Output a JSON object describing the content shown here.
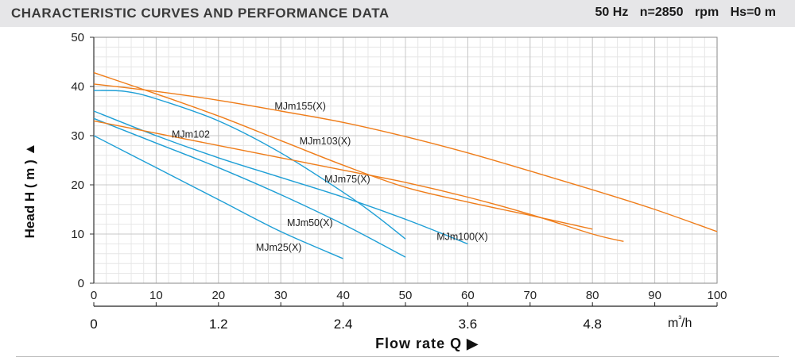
{
  "header": {
    "title": "CHARACTERISTIC CURVES AND PERFORMANCE DATA",
    "frequency": "50 Hz",
    "speed": "n=2850",
    "speed_unit": "rpm",
    "suction": "Hs=0 m"
  },
  "chart_data": {
    "type": "line",
    "ylabel": "Head H ( m ) ▲",
    "xlabel": "Flow rate Q ▶",
    "x_unit": "m³/h",
    "x_ticks_primary": [
      "0",
      "10",
      "20",
      "30",
      "40",
      "50",
      "60",
      "70",
      "80",
      "90",
      "100"
    ],
    "x_ticks_secondary": [
      "0",
      "1.2",
      "2.4",
      "3.6",
      "4.8"
    ],
    "y_ticks": [
      "0",
      "10",
      "20",
      "30",
      "40",
      "50"
    ],
    "xlim": [
      0,
      100
    ],
    "ylim": [
      0,
      50
    ],
    "grid": true,
    "colors": {
      "blue": "#1e9fd6",
      "orange": "#ef7d1a"
    },
    "series": [
      {
        "name": "MJm25(X)",
        "color": "#1e9fd6",
        "points": [
          [
            0,
            30
          ],
          [
            10,
            23.5
          ],
          [
            20,
            17
          ],
          [
            30,
            10.5
          ],
          [
            40,
            5
          ]
        ]
      },
      {
        "name": "MJm50(X)",
        "color": "#1e9fd6",
        "points": [
          [
            0,
            33.5
          ],
          [
            10,
            28.5
          ],
          [
            20,
            23.5
          ],
          [
            30,
            18
          ],
          [
            40,
            12
          ],
          [
            50,
            5.3
          ]
        ]
      },
      {
        "name": "MJm75(X)",
        "color": "#1e9fd6",
        "points": [
          [
            0,
            39.2
          ],
          [
            5,
            39
          ],
          [
            10,
            37.5
          ],
          [
            20,
            33
          ],
          [
            30,
            26.5
          ],
          [
            40,
            18.5
          ],
          [
            45,
            14
          ],
          [
            50,
            9
          ]
        ]
      },
      {
        "name": "MJm100(X)",
        "color": "#1e9fd6",
        "points": [
          [
            0,
            35
          ],
          [
            10,
            30
          ],
          [
            20,
            25.5
          ],
          [
            30,
            21.5
          ],
          [
            40,
            17.5
          ],
          [
            50,
            13
          ],
          [
            60,
            8
          ]
        ]
      },
      {
        "name": "MJm102",
        "color": "#ef7d1a",
        "points": [
          [
            0,
            33
          ],
          [
            10,
            30.5
          ],
          [
            20,
            28
          ],
          [
            30,
            25.5
          ],
          [
            40,
            23
          ],
          [
            50,
            20.5
          ],
          [
            60,
            17.5
          ],
          [
            70,
            14
          ],
          [
            80,
            10
          ],
          [
            85,
            8.5
          ]
        ]
      },
      {
        "name": "MJm103(X)",
        "color": "#ef7d1a",
        "points": [
          [
            0,
            42.8
          ],
          [
            10,
            38.5
          ],
          [
            20,
            34
          ],
          [
            30,
            29
          ],
          [
            40,
            24
          ],
          [
            50,
            19.5
          ],
          [
            60,
            16.5
          ],
          [
            70,
            13.8
          ],
          [
            80,
            11
          ]
        ]
      },
      {
        "name": "MJm155(X)",
        "color": "#ef7d1a",
        "points": [
          [
            0,
            40.5
          ],
          [
            10,
            39
          ],
          [
            20,
            37.2
          ],
          [
            30,
            35
          ],
          [
            40,
            32.7
          ],
          [
            50,
            29.8
          ],
          [
            60,
            26.5
          ],
          [
            70,
            22.8
          ],
          [
            80,
            19
          ],
          [
            90,
            15
          ],
          [
            100,
            10.5
          ]
        ]
      }
    ],
    "labels": [
      {
        "text": "MJm155(X)",
        "x": 29,
        "y": 35.3
      },
      {
        "text": "MJm102",
        "x": 12.5,
        "y": 29.6
      },
      {
        "text": "MJm103(X)",
        "x": 33,
        "y": 28.2
      },
      {
        "text": "MJm75(X)",
        "x": 37,
        "y": 20.5
      },
      {
        "text": "MJm50(X)",
        "x": 31,
        "y": 11.6
      },
      {
        "text": "MJm25(X)",
        "x": 26,
        "y": 6.6
      },
      {
        "text": "MJm100(X)",
        "x": 55,
        "y": 8.8
      }
    ]
  }
}
